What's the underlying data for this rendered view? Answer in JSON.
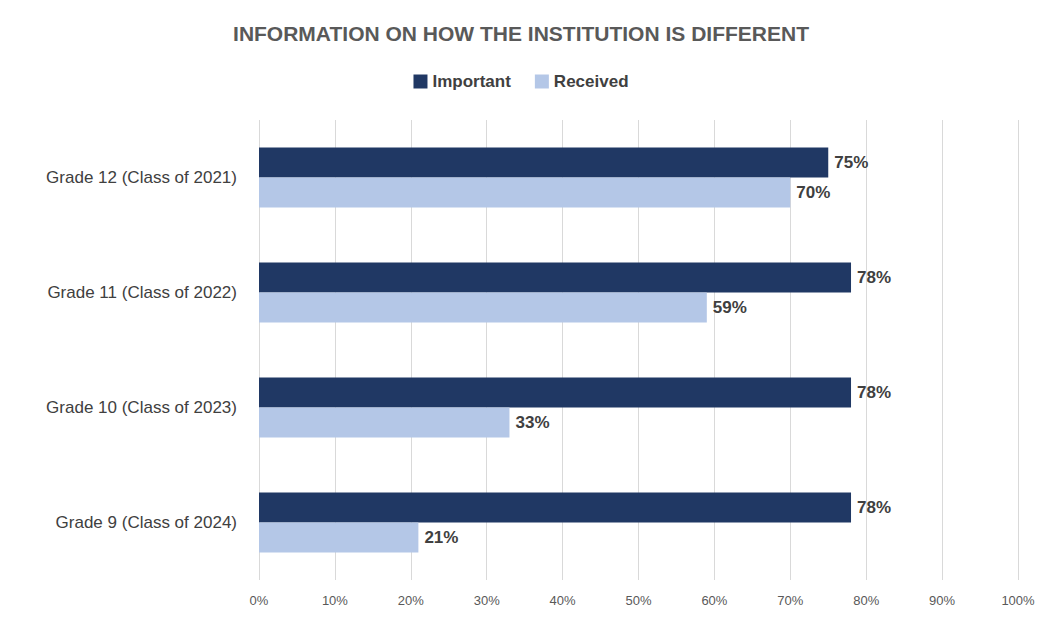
{
  "chart_data": {
    "type": "bar",
    "title": "INFORMATION ON HOW THE INSTITUTION IS DIFFERENT",
    "orientation": "horizontal",
    "categories": [
      "Grade 12 (Class of 2021)",
      "Grade 11 (Class of 2022)",
      "Grade 10 (Class of 2023)",
      "Grade 9 (Class of 2024)"
    ],
    "series": [
      {
        "name": "Important",
        "color": "#203864",
        "values": [
          75,
          78,
          78,
          78
        ],
        "value_labels": [
          "75%",
          "78%",
          "78%",
          "78%"
        ]
      },
      {
        "name": "Received",
        "color": "#b4c7e7",
        "values": [
          70,
          59,
          33,
          21
        ],
        "value_labels": [
          "70%",
          "59%",
          "33%",
          "21%"
        ]
      }
    ],
    "xlim": [
      0,
      100
    ],
    "xticks": [
      {
        "value": 0,
        "label": "0%"
      },
      {
        "value": 10,
        "label": "10%"
      },
      {
        "value": 20,
        "label": "20%"
      },
      {
        "value": 30,
        "label": "30%"
      },
      {
        "value": 40,
        "label": "40%"
      },
      {
        "value": 50,
        "label": "50%"
      },
      {
        "value": 60,
        "label": "60%"
      },
      {
        "value": 70,
        "label": "70%"
      },
      {
        "value": 80,
        "label": "80%"
      },
      {
        "value": 90,
        "label": "90%"
      },
      {
        "value": 100,
        "label": "100%"
      }
    ],
    "grid": true,
    "legend": "top",
    "data_labels": true
  }
}
